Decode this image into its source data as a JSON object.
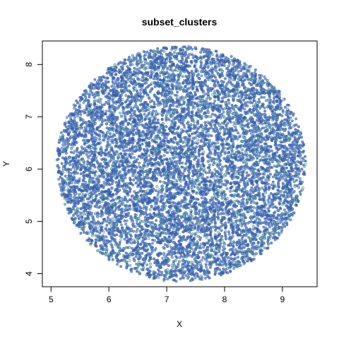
{
  "chart_data": {
    "type": "scatter",
    "title": "subset_clusters",
    "xlabel": "X",
    "ylabel": "Y",
    "xlim": [
      4.85,
      9.6
    ],
    "ylim": [
      3.75,
      8.45
    ],
    "xticks": [
      5,
      6,
      7,
      8,
      9
    ],
    "yticks": [
      4,
      5,
      6,
      7,
      8
    ],
    "grid": false,
    "legend": "none",
    "point_colors": [
      "#3f66b8",
      "#4b77c2",
      "#5a8ecb",
      "#4aa3b5",
      "#66b8a8",
      "#8fd0b0",
      "#b6e3b8"
    ],
    "point_stroke": "#2d4f9e",
    "point_count_approx": 9000,
    "cloud": {
      "shape": "ellipse",
      "center": [
        7.25,
        6.1
      ],
      "radius_x": 2.15,
      "radius_y": 2.25
    }
  }
}
